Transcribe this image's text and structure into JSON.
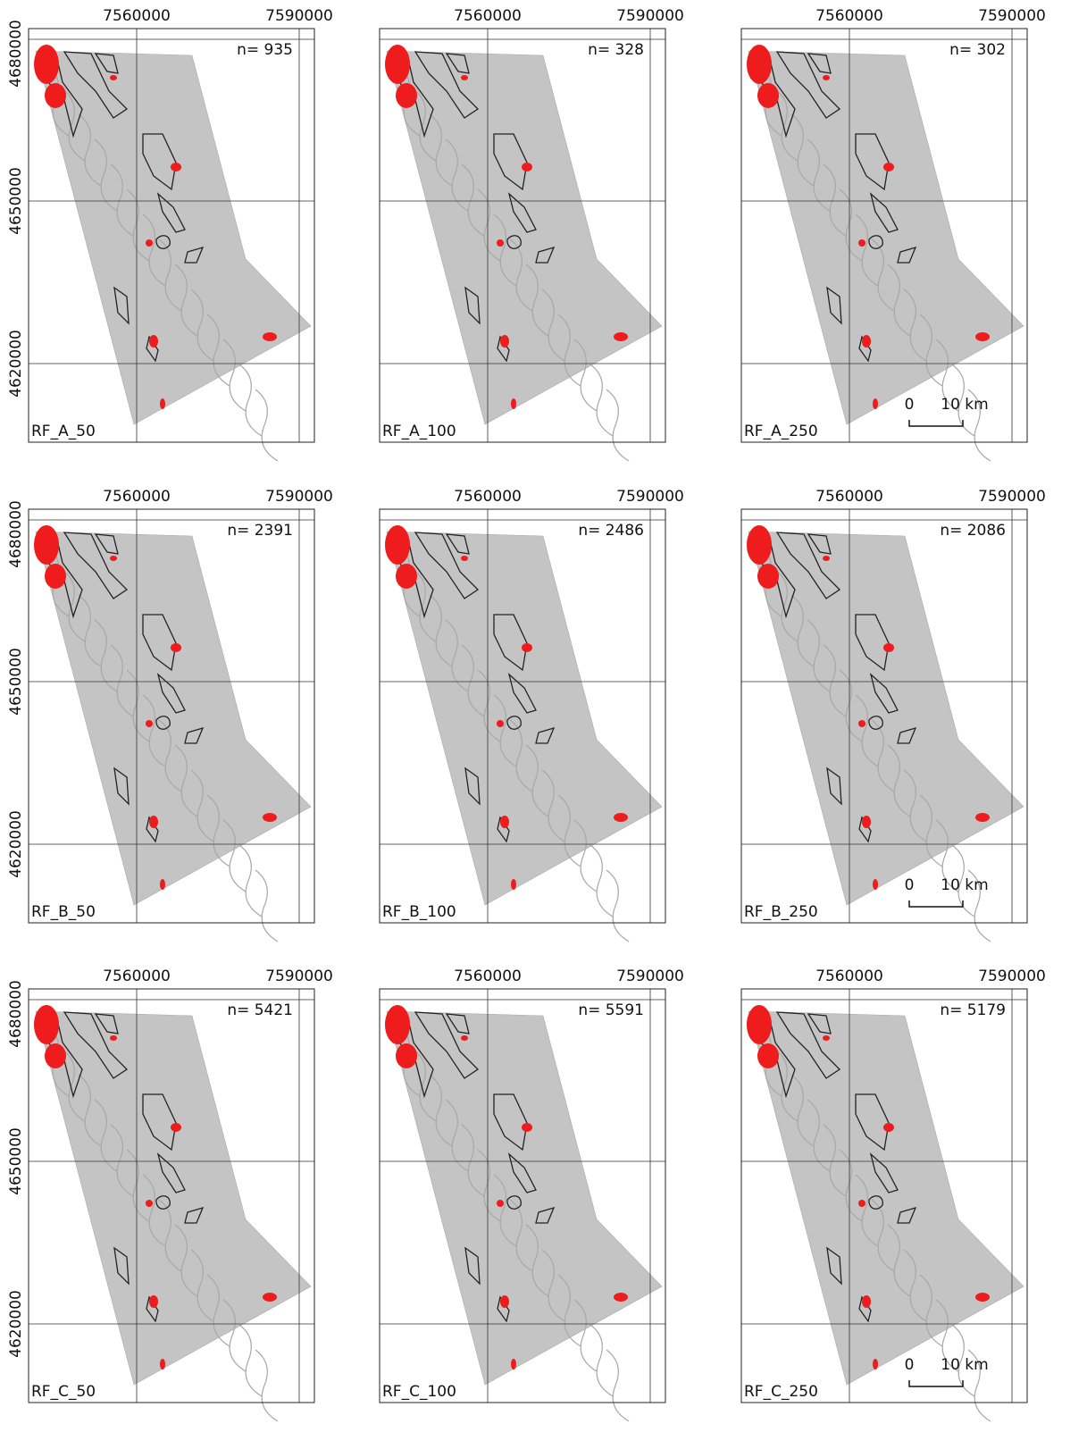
{
  "x_labels": [
    "7560000",
    "7590000"
  ],
  "y_labels": [
    "4680000",
    "4650000",
    "4620000"
  ],
  "scale_bar": {
    "zero": "0",
    "length": "10 km"
  },
  "panels": [
    {
      "label": "RF_A_50",
      "count": "n= 935"
    },
    {
      "label": "RF_A_100",
      "count": "n= 328"
    },
    {
      "label": "RF_A_250",
      "count": "n= 302"
    },
    {
      "label": "RF_B_50",
      "count": "n= 2391"
    },
    {
      "label": "RF_B_100",
      "count": "n= 2486"
    },
    {
      "label": "RF_B_250",
      "count": "n= 2086"
    },
    {
      "label": "RF_C_50",
      "count": "n= 5421"
    },
    {
      "label": "RF_C_100",
      "count": "n= 5591"
    },
    {
      "label": "RF_C_250",
      "count": "n= 5179"
    }
  ]
}
